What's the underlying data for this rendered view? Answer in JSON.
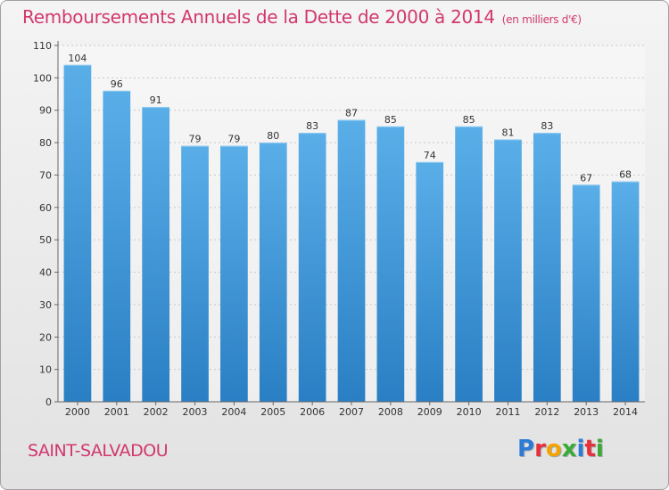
{
  "page": {
    "title": "Remboursements Annuels de la Dette de 2000 à 2014",
    "subtitle": "(en milliers d'€)",
    "commune": "SAINT-SALVADOU",
    "logo": "Proxiti",
    "logo_colors": [
      "#2e7bd6",
      "#e8303a",
      "#f5a300",
      "#3aaa35",
      "#2e7bd6",
      "#e8303a",
      "#3aaa35"
    ]
  },
  "chart_data": {
    "type": "bar",
    "title": "Remboursements Annuels de la Dette de 2000 à 2014",
    "subtitle": "(en milliers d'€)",
    "xlabel": "",
    "ylabel": "",
    "categories": [
      "2000",
      "2001",
      "2002",
      "2003",
      "2004",
      "2005",
      "2006",
      "2007",
      "2008",
      "2009",
      "2010",
      "2011",
      "2012",
      "2013",
      "2014"
    ],
    "values": [
      104,
      96,
      91,
      79,
      79,
      80,
      83,
      87,
      85,
      74,
      85,
      81,
      83,
      67,
      68
    ],
    "ylim": [
      0,
      110
    ],
    "yticks": [
      0,
      10,
      20,
      30,
      40,
      50,
      60,
      70,
      80,
      90,
      100,
      110
    ],
    "grid": true,
    "bar_color_top": "#5aaee8",
    "bar_color_bottom": "#2a7fc4",
    "title_color": "#d2376e"
  }
}
